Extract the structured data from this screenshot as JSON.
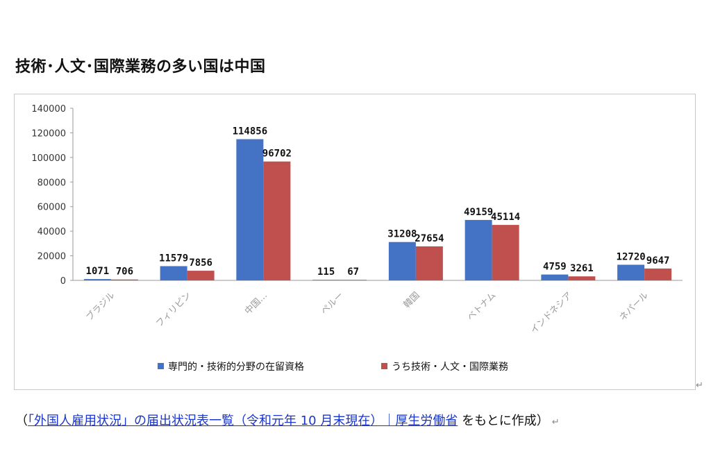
{
  "page": {
    "title": "技術･人文･国際業務の多い国は中国",
    "caption_open": "（",
    "caption_link": "「外国人雇用状況」の届出状況表一覧（令和元年 10 月末現在）｜厚生労働省",
    "caption_rest": " をもとに作成）",
    "return_mark": "↵"
  },
  "chart_data": {
    "type": "bar",
    "categories": [
      "ブラジル",
      "フィリピン",
      "中国…",
      "ペルー",
      "韓国",
      "ベトナム",
      "インドネシア",
      "ネパール"
    ],
    "series": [
      {
        "name": "専門的・技術的分野の在留資格",
        "values": [
          1071,
          11579,
          114856,
          115,
          31208,
          49159,
          4759,
          12720
        ],
        "color": "#4472C4"
      },
      {
        "name": "うち技術・人文・国際業務",
        "values": [
          706,
          7856,
          96702,
          67,
          27654,
          45114,
          3261,
          9647
        ],
        "color": "#C0504D"
      }
    ],
    "y_ticks": [
      "0",
      "20000",
      "40000",
      "60000",
      "80000",
      "100000",
      "120000",
      "140000"
    ],
    "ylim": [
      0,
      140000
    ],
    "grid": false,
    "legend_position": "bottom"
  }
}
